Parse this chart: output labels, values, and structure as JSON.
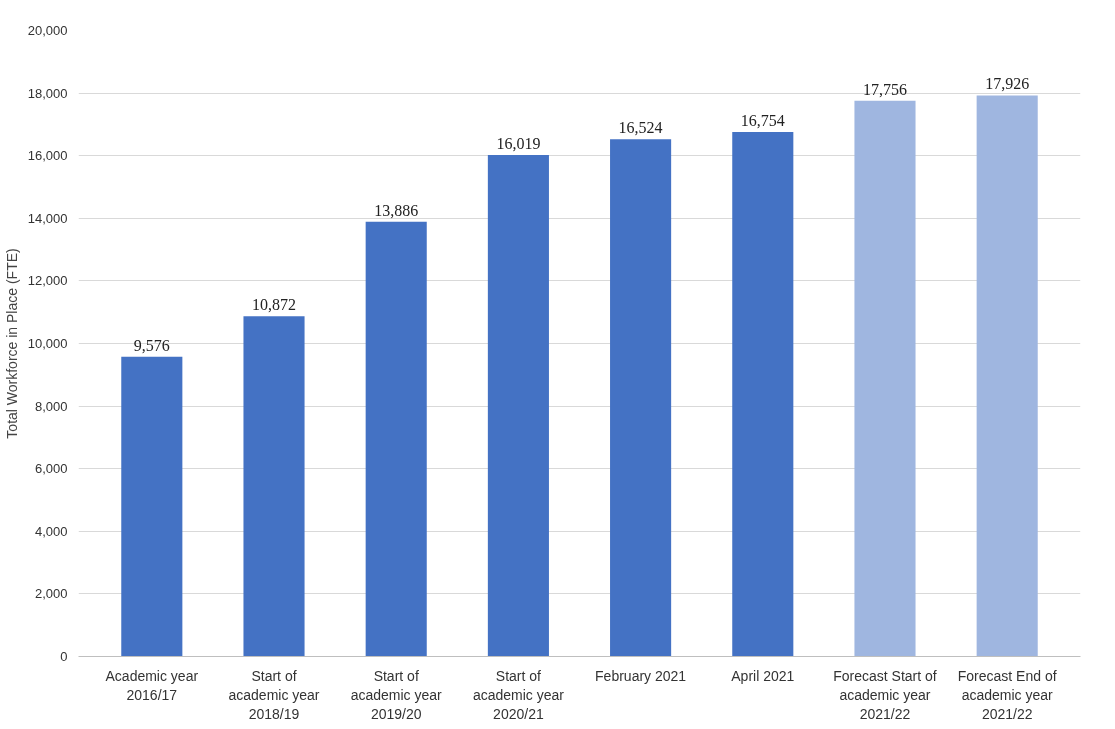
{
  "chart_data": {
    "type": "bar",
    "ylabel": "Total Workforce in Place (FTE)",
    "categories": [
      "Academic year\n2016/17",
      "Start of\nacademic year\n2018/19",
      "Start of\nacademic year\n2019/20",
      "Start of\nacademic year\n2020/21",
      "February 2021",
      "April 2021",
      "Forecast Start of\nacademic year\n2021/22",
      "Forecast End of\nacademic year\n2021/22"
    ],
    "values": [
      9576,
      10872,
      13886,
      16019,
      16524,
      16754,
      17756,
      17926
    ],
    "colors": [
      "#4472c4",
      "#4472c4",
      "#4472c4",
      "#4472c4",
      "#4472c4",
      "#4472c4",
      "#9fb6e0",
      "#9fb6e0"
    ],
    "value_labels": [
      "9,576",
      "10,872",
      "13,886",
      "16,019",
      "16,524",
      "16,754",
      "17,756",
      "17,926"
    ],
    "ylim": [
      0,
      20000
    ],
    "yticks": [
      0,
      {
        "value": 2000,
        "label": "2,000"
      },
      {
        "value": 4000,
        "label": "4,000"
      },
      {
        "value": 6000,
        "label": "6,000"
      },
      {
        "value": 8000,
        "label": "8,000"
      },
      {
        "value": 10000,
        "label": "10,000"
      },
      {
        "value": 12000,
        "label": "12,000"
      },
      {
        "value": 14000,
        "label": "14,000"
      },
      {
        "value": 16000,
        "label": "16,000"
      },
      {
        "value": 18000,
        "label": "18,000"
      },
      {
        "value": 20000,
        "label": "20,000"
      }
    ],
    "grid": "y"
  }
}
